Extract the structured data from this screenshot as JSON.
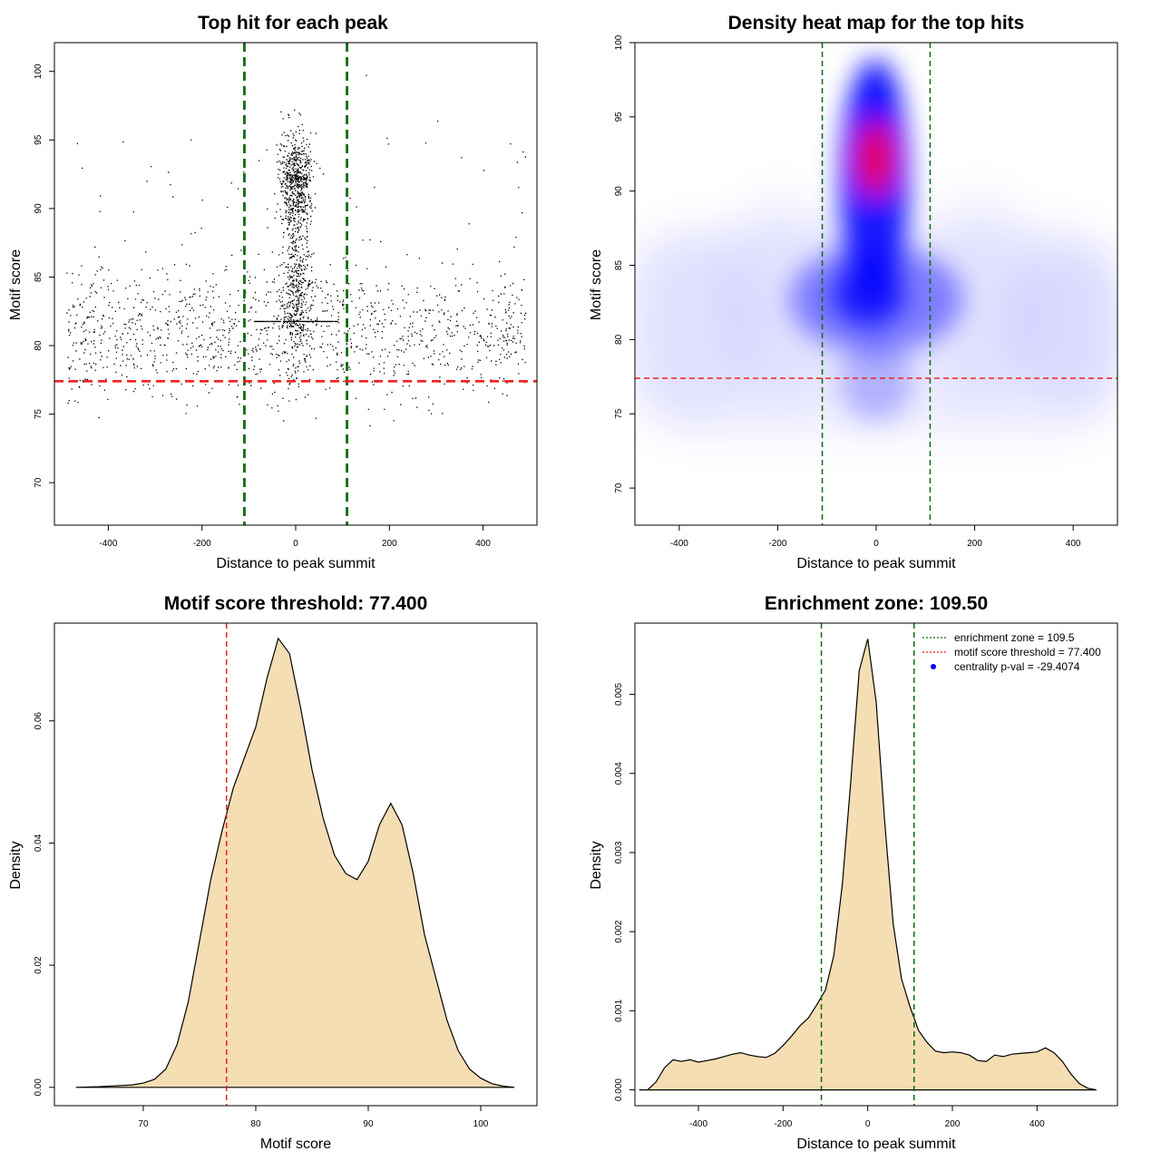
{
  "colors": {
    "threshold": "#ee2222",
    "zone": "#106a10",
    "density_fill": "#f5deb3",
    "heat_low": "#ffffff",
    "heat_mid": "#0000ff",
    "heat_high": "#ff0000",
    "points": "#000000",
    "centrality": "#0000ff"
  },
  "chart_data": [
    {
      "type": "scatter",
      "title": "Top hit for each peak",
      "xlabel": "Distance to peak summit",
      "ylabel": "Motif score",
      "xlim": [
        -515,
        515
      ],
      "ylim": [
        66.9,
        102.1
      ],
      "xticks": [
        -400,
        -200,
        0,
        200,
        400
      ],
      "yticks": [
        70,
        75,
        80,
        85,
        90,
        95,
        100
      ],
      "threshold_y": 77.4,
      "zone_x": [
        -109.5,
        109.5
      ],
      "point_count": 3000,
      "points_summary": "scattered uniformly across -500..500 with scores mostly 74-88; dense central column around 0 reaching 99; horizontal streak at 81.8"
    },
    {
      "type": "heatmap",
      "title": "Density heat map for the top hits",
      "xlabel": "Distance to peak summit",
      "ylabel": "Motif score",
      "xlim": [
        -490,
        490
      ],
      "ylim": [
        67.5,
        100
      ],
      "xticks": [
        -400,
        -200,
        0,
        200,
        400
      ],
      "yticks": [
        70,
        75,
        80,
        85,
        90,
        95,
        100
      ],
      "threshold_y": 77.4,
      "zone_x": [
        -109.5,
        109.5
      ],
      "hotspot": {
        "x": 0,
        "y": 92.3
      }
    },
    {
      "type": "area",
      "title": "Motif score threshold: 77.400",
      "xlabel": "Motif score",
      "ylabel": "Density",
      "xlim": [
        62.1,
        105
      ],
      "ylim": [
        -0.003,
        0.076
      ],
      "xticks": [
        70,
        80,
        90,
        100
      ],
      "yticks": [
        0.0,
        0.02,
        0.04,
        0.06
      ],
      "ytick_labels": [
        "0.00",
        "0.02",
        "0.04",
        "0.06"
      ],
      "threshold_x": 77.4,
      "x": [
        64,
        66,
        68,
        69,
        70,
        71,
        72,
        73,
        74,
        75,
        76,
        77,
        78,
        79,
        80,
        81,
        82,
        83,
        84,
        85,
        86,
        87,
        88,
        89,
        90,
        91,
        92,
        93,
        94,
        95,
        96,
        97,
        98,
        99,
        100,
        101,
        102,
        103
      ],
      "y": [
        0.0,
        0.0001,
        0.0003,
        0.0004,
        0.0007,
        0.0013,
        0.003,
        0.007,
        0.014,
        0.024,
        0.034,
        0.042,
        0.049,
        0.054,
        0.059,
        0.067,
        0.0735,
        0.071,
        0.062,
        0.052,
        0.044,
        0.038,
        0.035,
        0.034,
        0.037,
        0.043,
        0.0465,
        0.043,
        0.035,
        0.025,
        0.018,
        0.011,
        0.006,
        0.003,
        0.0015,
        0.0006,
        0.0002,
        0.0
      ]
    },
    {
      "type": "area",
      "title": "Enrichment zone: 109.50",
      "xlabel": "Distance to peak summit",
      "ylabel": "Density",
      "xlim": [
        -550,
        590
      ],
      "ylim": [
        -0.0002,
        0.0059
      ],
      "xticks": [
        -400,
        -200,
        0,
        200,
        400
      ],
      "yticks": [
        0.0,
        0.001,
        0.002,
        0.003,
        0.004,
        0.005
      ],
      "ytick_labels": [
        "0.000",
        "0.001",
        "0.002",
        "0.003",
        "0.004",
        "0.005"
      ],
      "zone_x": [
        -109.5,
        109.5
      ],
      "x": [
        -540,
        -520,
        -500,
        -480,
        -460,
        -440,
        -420,
        -400,
        -380,
        -360,
        -340,
        -320,
        -300,
        -280,
        -260,
        -240,
        -220,
        -200,
        -180,
        -160,
        -140,
        -120,
        -100,
        -80,
        -60,
        -40,
        -20,
        0,
        20,
        40,
        60,
        80,
        100,
        120,
        140,
        160,
        180,
        200,
        220,
        240,
        260,
        280,
        300,
        320,
        340,
        360,
        380,
        400,
        420,
        440,
        460,
        480,
        500,
        520,
        540
      ],
      "y": [
        0.0,
        0.0,
        0.0001,
        0.00028,
        0.00038,
        0.00036,
        0.00038,
        0.00035,
        0.00037,
        0.00039,
        0.00042,
        0.00045,
        0.00047,
        0.00044,
        0.00042,
        0.00041,
        0.00046,
        0.00056,
        0.00068,
        0.00081,
        0.00091,
        0.00108,
        0.00126,
        0.0017,
        0.0026,
        0.0039,
        0.0053,
        0.0057,
        0.0049,
        0.0034,
        0.0021,
        0.0014,
        0.00105,
        0.00075,
        0.0006,
        0.00049,
        0.00047,
        0.00048,
        0.00047,
        0.00044,
        0.00037,
        0.00036,
        0.00044,
        0.00042,
        0.00045,
        0.00046,
        0.00047,
        0.00048,
        0.00053,
        0.00047,
        0.00036,
        0.0002,
        8e-05,
        2e-05,
        0.0
      ]
    }
  ],
  "legend": {
    "items": [
      {
        "label": "enrichment zone = 109.5"
      },
      {
        "label": "motif score threshold = 77.400"
      },
      {
        "label": "centrality p-val = -29.4074"
      }
    ]
  }
}
